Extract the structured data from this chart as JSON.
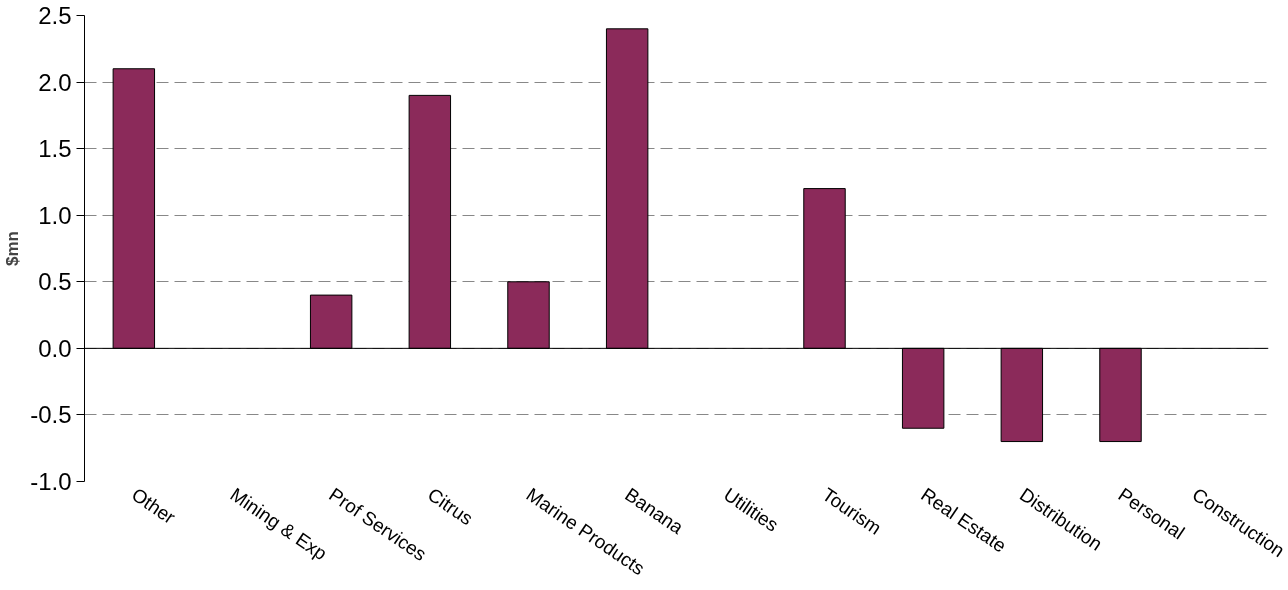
{
  "chart_data": {
    "type": "bar",
    "ylabel": "$mn",
    "categories": [
      "Other",
      "Mining & Exp",
      "Prof Services",
      "Citrus",
      "Marine Products",
      "Banana",
      "Utilities",
      "Tourism",
      "Real Estate",
      "Distribution",
      "Personal",
      "Construction"
    ],
    "values": [
      2.1,
      null,
      0.4,
      1.9,
      0.5,
      2.4,
      null,
      1.2,
      -0.6,
      -0.7,
      -0.7,
      null
    ],
    "color": "#8b2a5a",
    "ylim": [
      -1,
      2.5
    ],
    "yticks": [
      {
        "value": -1,
        "label": "-1.0"
      },
      {
        "value": -0.5,
        "label": "-0.5"
      },
      {
        "value": 0,
        "label": "0.0"
      },
      {
        "value": 0.5,
        "label": "0.5"
      },
      {
        "value": 1,
        "label": "1.0"
      },
      {
        "value": 1.5,
        "label": "1.5"
      },
      {
        "value": 2,
        "label": "2.0"
      },
      {
        "value": 2.5,
        "label": "2.5"
      }
    ],
    "grid": "y"
  }
}
